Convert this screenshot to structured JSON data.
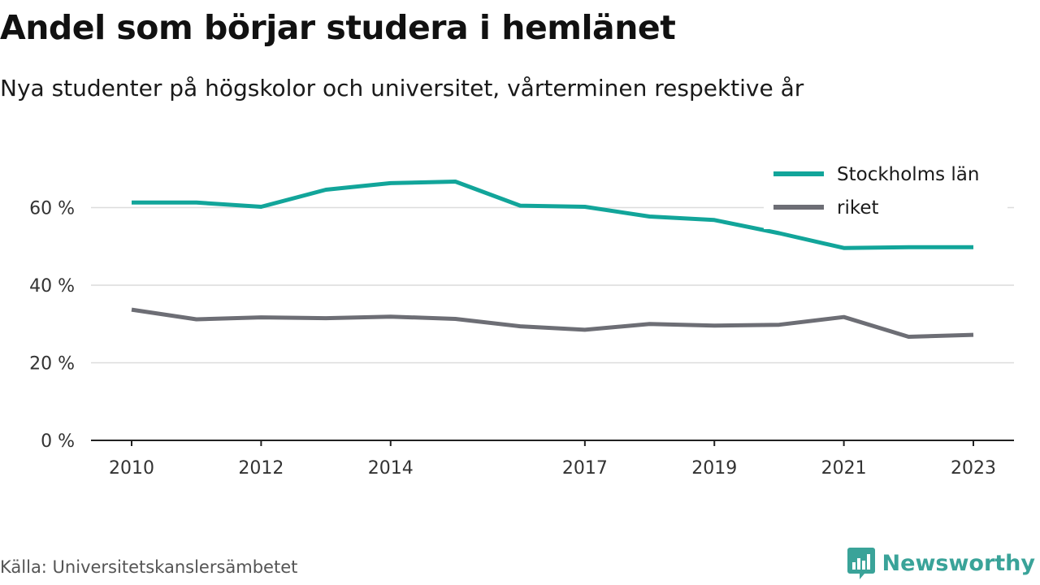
{
  "header": {
    "title": "Andel som börjar studera i hemlänet",
    "subtitle": "Nya studenter på högskolor och universitet, vårterminen respektive år"
  },
  "footer": {
    "source": "Källa: Universitetskanslersämbetet",
    "brand": "Newsworthy",
    "brand_icon": "bar-chart-logo-icon",
    "brand_color": "#3aa399"
  },
  "chart_data": {
    "type": "line",
    "title": "Andel som börjar studera i hemlänet",
    "subtitle": "Nya studenter på högskolor och universitet, vårterminen respektive år",
    "xlabel": "",
    "ylabel": "",
    "x": [
      2010,
      2011,
      2012,
      2013,
      2014,
      2015,
      2016,
      2017,
      2018,
      2019,
      2020,
      2021,
      2022,
      2023
    ],
    "x_tick_labels": [
      "2010",
      "2012",
      "2014",
      "2017",
      "2019",
      "2021",
      "2023"
    ],
    "y_tick_labels": [
      "0 %",
      "20 %",
      "40 %",
      "60 %"
    ],
    "y_ticks": [
      0,
      20,
      40,
      60
    ],
    "xlim": [
      2009.4,
      2023.7
    ],
    "ylim": [
      0,
      70
    ],
    "grid": true,
    "legend_position": "top-right",
    "series": [
      {
        "name": "Stockholms län",
        "color": "#12a59a",
        "values": [
          61.3,
          61.3,
          60.2,
          64.6,
          66.3,
          66.7,
          60.5,
          60.2,
          57.7,
          56.8,
          53.4,
          49.6,
          49.8,
          49.8
        ]
      },
      {
        "name": "riket",
        "color": "#6d6e75",
        "values": [
          33.7,
          31.2,
          31.7,
          31.5,
          31.9,
          31.3,
          29.4,
          28.5,
          30.0,
          29.6,
          29.8,
          31.8,
          26.7,
          27.2
        ]
      }
    ]
  }
}
